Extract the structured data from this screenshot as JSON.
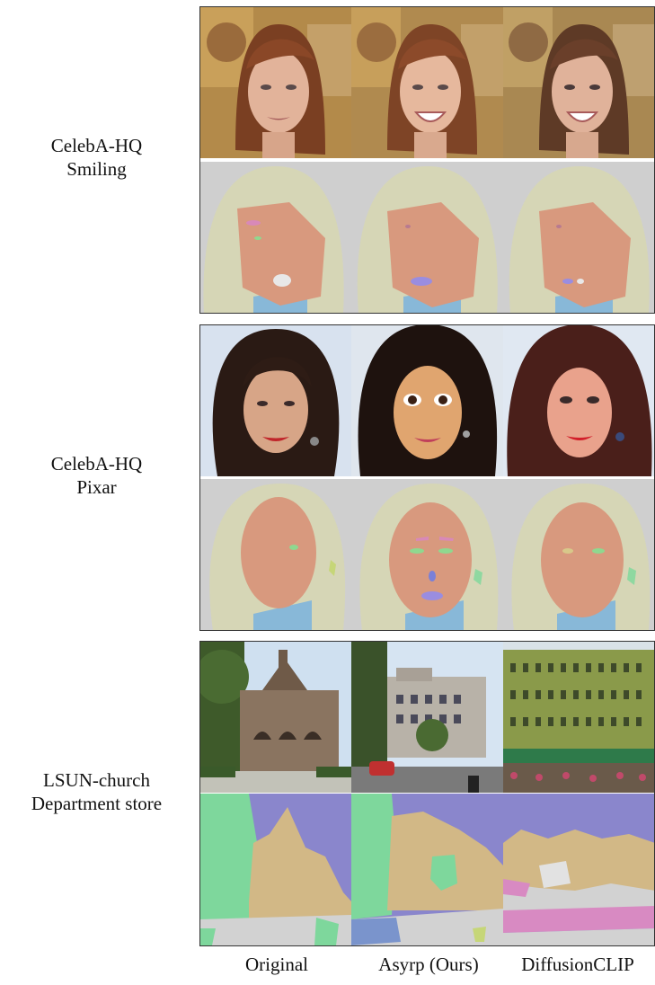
{
  "rows": [
    {
      "line1": "CelebA-HQ",
      "line2": "Smiling"
    },
    {
      "line1": "CelebA-HQ",
      "line2": "Pixar"
    },
    {
      "line1": "LSUN-church",
      "line2": "Department store"
    }
  ],
  "columns": [
    "Original",
    "Asyrp (Ours)",
    "DiffusionCLIP"
  ],
  "colors": {
    "seg_background": "#cfcfcf",
    "seg_hair": "#d6d6b6",
    "seg_skin": "#d8997e",
    "seg_neck": "#88b8d8",
    "seg_mouth": "#9a8de0",
    "seg_eye": "#8fd88f",
    "seg_sky": "#8a86cc",
    "seg_building": "#d2b886",
    "seg_tree": "#7ed79c",
    "seg_ground": "#d2d2d2",
    "seg_other": "#d88ac2"
  }
}
